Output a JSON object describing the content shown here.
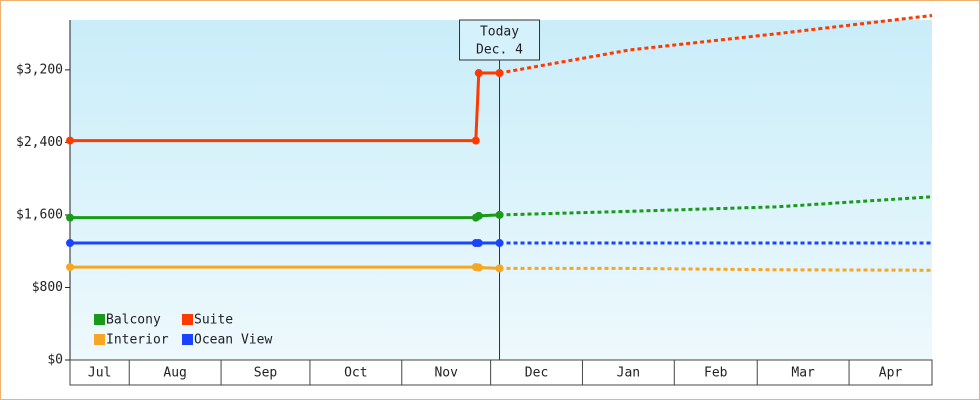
{
  "chart_data": {
    "type": "line",
    "x": [
      11,
      148,
      149,
      156
    ],
    "forecast_x": [
      156,
      200,
      250,
      302
    ],
    "xlim": [
      11,
      302
    ],
    "xticks": [
      {
        "value": 11,
        "label": "Jul"
      },
      {
        "value": 31,
        "label": "Aug"
      },
      {
        "value": 62,
        "label": "Sep"
      },
      {
        "value": 92,
        "label": "Oct"
      },
      {
        "value": 123,
        "label": "Nov"
      },
      {
        "value": 153,
        "label": "Dec"
      },
      {
        "value": 184,
        "label": "Jan"
      },
      {
        "value": 215,
        "label": "Feb"
      },
      {
        "value": 243,
        "label": "Mar"
      },
      {
        "value": 274,
        "label": "Apr"
      }
    ],
    "ylim": [
      0,
      3750
    ],
    "yticks": [
      {
        "value": 0,
        "label": "$0"
      },
      {
        "value": 800,
        "label": "$800"
      },
      {
        "value": 1600,
        "label": "$1,600"
      },
      {
        "value": 2400,
        "label": "$2,400"
      },
      {
        "value": 3200,
        "label": "$3,200"
      }
    ],
    "today": {
      "x": 156,
      "label": "Today",
      "date": "Dec. 4"
    },
    "legend": "lower left",
    "series": [
      {
        "name": "Balcony",
        "color": "#1a9a1a",
        "values": [
          1570,
          1570,
          1590,
          1600
        ],
        "forecast_values": [
          1600,
          1640,
          1690,
          1800
        ]
      },
      {
        "name": "Suite",
        "color": "#ff3a00",
        "values": [
          2420,
          2420,
          3165,
          3165
        ],
        "forecast_values": [
          3165,
          3420,
          3600,
          3800
        ]
      },
      {
        "name": "Interior",
        "color": "#f5a623",
        "values": [
          1025,
          1025,
          1020,
          1010
        ],
        "forecast_values": [
          1010,
          1010,
          995,
          990
        ]
      },
      {
        "name": "Ocean View",
        "color": "#1a44ff",
        "values": [
          1290,
          1290,
          1290,
          1290
        ],
        "forecast_values": [
          1290,
          1290,
          1290,
          1290
        ]
      }
    ]
  }
}
